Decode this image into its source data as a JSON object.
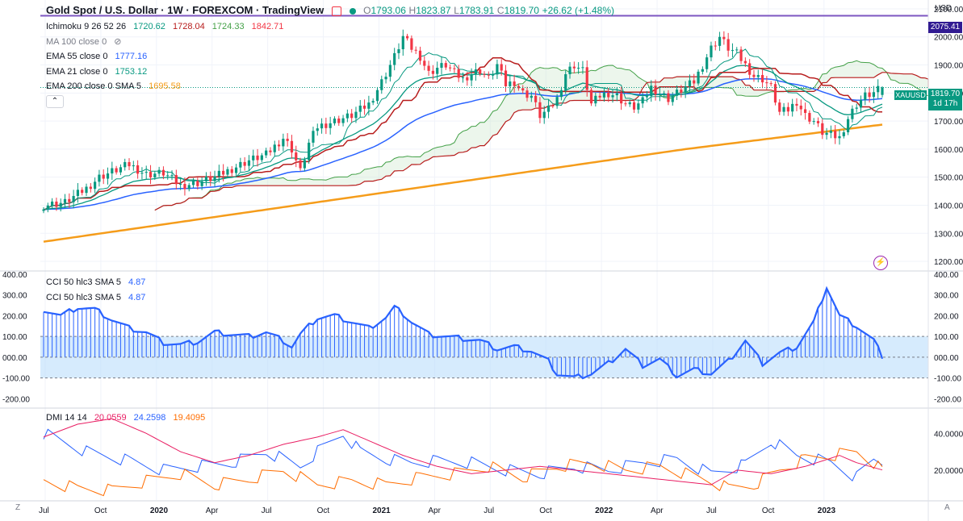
{
  "header": {
    "title": "Gold Spot / U.S. Dollar · 1W · FOREXCOM · TradingView",
    "open_label": "O",
    "open": "1793.06",
    "high_label": "H",
    "high": "1823.87",
    "low_label": "L",
    "low": "1783.91",
    "close_label": "C",
    "close": "1819.70",
    "change": "+26.62 (+1.48%)"
  },
  "currency_label": "USD",
  "indicators": {
    "ichimoku": {
      "label": "Ichimoku 9 26 52 26",
      "v1": "1720.62",
      "v2": "1728.04",
      "v3": "1724.33",
      "v4": "1842.71"
    },
    "ma100": {
      "label": "MA 100 close 0"
    },
    "ema55": {
      "label": "EMA 55 close 0",
      "value": "1777.16"
    },
    "ema21": {
      "label": "EMA 21 close 0",
      "value": "1753.12"
    },
    "ema200": {
      "label": "EMA 200 close 0 SMA 5",
      "value": "1695.58"
    },
    "cci1": {
      "label": "CCI 50 hlc3 SMA 5",
      "value": "4.87"
    },
    "cci2": {
      "label": "CCI 50 hlc3 SMA 5",
      "value": "4.87"
    },
    "dmi": {
      "label": "DMI 14 14",
      "v1": "20.0559",
      "v2": "24.2598",
      "v3": "19.4095"
    }
  },
  "price_tag": {
    "value": "1819.70",
    "symbol": "XAUUSD",
    "countdown": "1d 17h"
  },
  "high_tag": "2075.41",
  "colors": {
    "up": "#089981",
    "down": "#f23645",
    "ema55": "#2962ff",
    "ema21": "#089981",
    "ema200": "#f59c1a",
    "tenkan": "#089981",
    "kijun": "#b71c1c",
    "spanA": "#43a047",
    "spanB": "#b71c1c",
    "cci": "#2962ff",
    "cci_band": "#bbdefb",
    "dmi_plus": "#2962ff",
    "dmi_minus": "#ff6d00",
    "adx": "#e91e63",
    "hline": "#7e57c2"
  },
  "chart_data": [
    {
      "type": "candlestick",
      "title": "Gold Spot / U.S. Dollar · 1W · FOREXCOM · TradingView",
      "y_ticks": [
        "2100.00",
        "2000.00",
        "1900.00",
        "1800.00",
        "1700.00",
        "1600.00",
        "1500.00",
        "1400.00",
        "1300.00",
        "1200.00"
      ],
      "ylim": [
        1180,
        2120
      ],
      "x_ticks": [
        "Jul",
        "Oct",
        "2020",
        "Apr",
        "Jul",
        "Oct",
        "2021",
        "Apr",
        "Jul",
        "Oct",
        "2022",
        "Apr",
        "Jul",
        "Oct",
        "2023"
      ],
      "close_path": [
        [
          0,
          1400
        ],
        [
          5,
          1410
        ],
        [
          10,
          1460
        ],
        [
          13,
          1500
        ],
        [
          16,
          1520
        ],
        [
          20,
          1545
        ],
        [
          24,
          1510
        ],
        [
          28,
          1515
        ],
        [
          32,
          1470
        ],
        [
          36,
          1480
        ],
        [
          40,
          1500
        ],
        [
          44,
          1530
        ],
        [
          48,
          1560
        ],
        [
          52,
          1580
        ],
        [
          56,
          1640
        ],
        [
          58,
          1600
        ],
        [
          60,
          1520
        ],
        [
          62,
          1620
        ],
        [
          64,
          1680
        ],
        [
          68,
          1700
        ],
        [
          72,
          1720
        ],
        [
          76,
          1760
        ],
        [
          79,
          1840
        ],
        [
          82,
          1930
        ],
        [
          84,
          2000
        ],
        [
          86,
          1960
        ],
        [
          88,
          1930
        ],
        [
          90,
          1870
        ],
        [
          92,
          1890
        ],
        [
          94,
          1900
        ],
        [
          96,
          1870
        ],
        [
          98,
          1850
        ],
        [
          100,
          1870
        ],
        [
          102,
          1880
        ],
        [
          104,
          1850
        ],
        [
          106,
          1900
        ],
        [
          108,
          1830
        ],
        [
          110,
          1840
        ],
        [
          112,
          1800
        ],
        [
          114,
          1790
        ],
        [
          116,
          1720
        ],
        [
          118,
          1740
        ],
        [
          120,
          1780
        ],
        [
          122,
          1870
        ],
        [
          124,
          1900
        ],
        [
          126,
          1880
        ],
        [
          128,
          1760
        ],
        [
          130,
          1790
        ],
        [
          132,
          1800
        ],
        [
          134,
          1790
        ],
        [
          136,
          1760
        ],
        [
          138,
          1750
        ],
        [
          140,
          1770
        ],
        [
          142,
          1820
        ],
        [
          144,
          1800
        ],
        [
          146,
          1780
        ],
        [
          148,
          1800
        ],
        [
          150,
          1820
        ],
        [
          152,
          1840
        ],
        [
          154,
          1900
        ],
        [
          156,
          1960
        ],
        [
          158,
          2000
        ],
        [
          160,
          1960
        ],
        [
          162,
          1940
        ],
        [
          164,
          1900
        ],
        [
          166,
          1860
        ],
        [
          168,
          1850
        ],
        [
          170,
          1820
        ],
        [
          172,
          1730
        ],
        [
          174,
          1740
        ],
        [
          176,
          1770
        ],
        [
          178,
          1720
        ],
        [
          180,
          1700
        ],
        [
          182,
          1660
        ],
        [
          184,
          1650
        ],
        [
          186,
          1640
        ],
        [
          188,
          1710
        ],
        [
          190,
          1760
        ],
        [
          192,
          1790
        ],
        [
          194,
          1800
        ],
        [
          196,
          1819.7
        ]
      ],
      "candle_count": 197,
      "series": [
        {
          "name": "EMA 55 close 0",
          "last": 1777.16
        },
        {
          "name": "EMA 21 close 0",
          "last": 1753.12
        },
        {
          "name": "EMA 200 close 0 SMA 5",
          "last": 1695.58
        },
        {
          "name": "Ichimoku 9 26 52 26",
          "last": [
            1720.62,
            1728.04,
            1724.33,
            1842.71
          ]
        }
      ],
      "horizontal_line": 2075.41
    },
    {
      "type": "bar",
      "title": "CCI 50 hlc3 SMA 5",
      "y_ticks": [
        "400.00",
        "300.00",
        "200.00",
        "100.00",
        "000.00",
        "-100.00",
        "-200.00"
      ],
      "ylim": [
        -230,
        400
      ],
      "band": [
        -100,
        100
      ],
      "path": [
        [
          0,
          230
        ],
        [
          4,
          200
        ],
        [
          8,
          240
        ],
        [
          12,
          230
        ],
        [
          16,
          180
        ],
        [
          20,
          140
        ],
        [
          24,
          120
        ],
        [
          28,
          70
        ],
        [
          32,
          60
        ],
        [
          36,
          75
        ],
        [
          40,
          120
        ],
        [
          44,
          110
        ],
        [
          48,
          100
        ],
        [
          52,
          120
        ],
        [
          56,
          80
        ],
        [
          58,
          50
        ],
        [
          60,
          110
        ],
        [
          64,
          190
        ],
        [
          68,
          200
        ],
        [
          72,
          170
        ],
        [
          76,
          140
        ],
        [
          80,
          190
        ],
        [
          82,
          240
        ],
        [
          84,
          210
        ],
        [
          86,
          170
        ],
        [
          88,
          140
        ],
        [
          90,
          110
        ],
        [
          94,
          100
        ],
        [
          98,
          90
        ],
        [
          102,
          80
        ],
        [
          106,
          40
        ],
        [
          110,
          50
        ],
        [
          114,
          30
        ],
        [
          118,
          -20
        ],
        [
          120,
          -80
        ],
        [
          124,
          -100
        ],
        [
          128,
          -80
        ],
        [
          132,
          -30
        ],
        [
          136,
          40
        ],
        [
          140,
          -40
        ],
        [
          144,
          -10
        ],
        [
          148,
          -90
        ],
        [
          152,
          -60
        ],
        [
          156,
          -80
        ],
        [
          160,
          -20
        ],
        [
          164,
          80
        ],
        [
          168,
          -30
        ],
        [
          172,
          20
        ],
        [
          176,
          50
        ],
        [
          180,
          170
        ],
        [
          183,
          340
        ],
        [
          186,
          200
        ],
        [
          190,
          150
        ],
        [
          194,
          80
        ],
        [
          196,
          4.87
        ]
      ]
    },
    {
      "type": "line",
      "title": "DMI 14 14",
      "y_ticks": [
        "40.0000",
        "20.0000"
      ],
      "ylim": [
        5,
        52
      ],
      "series": [
        {
          "name": "+DI",
          "last": 24.2598,
          "path": [
            [
              0,
              40
            ],
            [
              10,
              30
            ],
            [
              20,
              25
            ],
            [
              28,
              20
            ],
            [
              36,
              22
            ],
            [
              44,
              24
            ],
            [
              52,
              30
            ],
            [
              60,
              22
            ],
            [
              64,
              30
            ],
            [
              70,
              40
            ],
            [
              74,
              30
            ],
            [
              80,
              26
            ],
            [
              86,
              24
            ],
            [
              92,
              25
            ],
            [
              100,
              24
            ],
            [
              108,
              20
            ],
            [
              116,
              18
            ],
            [
              124,
              22
            ],
            [
              132,
              20
            ],
            [
              140,
              24
            ],
            [
              148,
              26
            ],
            [
              156,
              18
            ],
            [
              164,
              23
            ],
            [
              170,
              36
            ],
            [
              176,
              28
            ],
            [
              184,
              24
            ],
            [
              190,
              16
            ],
            [
              194,
              26
            ],
            [
              196,
              24.26
            ]
          ]
        },
        {
          "name": "-DI",
          "last": 19.4095,
          "path": [
            [
              0,
              14
            ],
            [
              8,
              10
            ],
            [
              16,
              9
            ],
            [
              24,
              14
            ],
            [
              32,
              18
            ],
            [
              40,
              12
            ],
            [
              48,
              15
            ],
            [
              56,
              20
            ],
            [
              64,
              12
            ],
            [
              72,
              14
            ],
            [
              80,
              12
            ],
            [
              88,
              16
            ],
            [
              96,
              18
            ],
            [
              104,
              22
            ],
            [
              112,
              16
            ],
            [
              120,
              22
            ],
            [
              128,
              24
            ],
            [
              136,
              20
            ],
            [
              144,
              22
            ],
            [
              150,
              18
            ],
            [
              156,
              14
            ],
            [
              160,
              10
            ],
            [
              166,
              12
            ],
            [
              172,
              20
            ],
            [
              178,
              26
            ],
            [
              184,
              28
            ],
            [
              190,
              30
            ],
            [
              194,
              24
            ],
            [
              196,
              19.41
            ]
          ]
        },
        {
          "name": "ADX",
          "last": 20.0559,
          "path": [
            [
              0,
              38
            ],
            [
              8,
              45
            ],
            [
              16,
              48
            ],
            [
              24,
              40
            ],
            [
              32,
              30
            ],
            [
              40,
              24
            ],
            [
              48,
              28
            ],
            [
              56,
              34
            ],
            [
              64,
              38
            ],
            [
              70,
              42
            ],
            [
              76,
              36
            ],
            [
              84,
              28
            ],
            [
              92,
              22
            ],
            [
              100,
              18
            ],
            [
              108,
              20
            ],
            [
              116,
              22
            ],
            [
              124,
              20
            ],
            [
              132,
              18
            ],
            [
              140,
              16
            ],
            [
              148,
              14
            ],
            [
              156,
              12
            ],
            [
              162,
              20
            ],
            [
              170,
              18
            ],
            [
              178,
              22
            ],
            [
              186,
              28
            ],
            [
              190,
              24
            ],
            [
              196,
              20.06
            ]
          ]
        }
      ]
    }
  ]
}
